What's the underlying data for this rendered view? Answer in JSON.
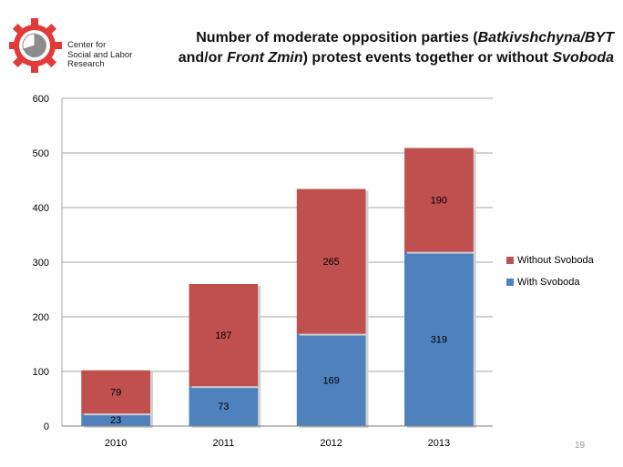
{
  "logo": {
    "lines": [
      "Center for",
      "Social and Labor",
      "Research"
    ],
    "colors": {
      "gear": "#e23a3a",
      "pie": "#8c8c8c"
    }
  },
  "title": {
    "part1": "Number of moderate opposition parties (",
    "italic1": "Batkivshchyna/BYT",
    "part2": " and/or ",
    "italic2": "Front Zmin",
    "part3": ") protest events together or without ",
    "italic3": "Svoboda"
  },
  "chart_data": {
    "type": "bar",
    "stacked": true,
    "categories": [
      "2010",
      "2011",
      "2012",
      "2013"
    ],
    "series": [
      {
        "name": "With Svoboda",
        "values": [
          23,
          73,
          169,
          319
        ],
        "color": "#4f81bd"
      },
      {
        "name": "Without Svoboda",
        "values": [
          79,
          187,
          265,
          190
        ],
        "color": "#c0504d"
      }
    ],
    "ylim": [
      0,
      600
    ],
    "yticks": [
      0,
      100,
      200,
      300,
      400,
      500,
      600
    ],
    "grid": true,
    "legend_position": "right",
    "legend_order": [
      "Without Svoboda",
      "With Svoboda"
    ]
  },
  "page_number": "19"
}
